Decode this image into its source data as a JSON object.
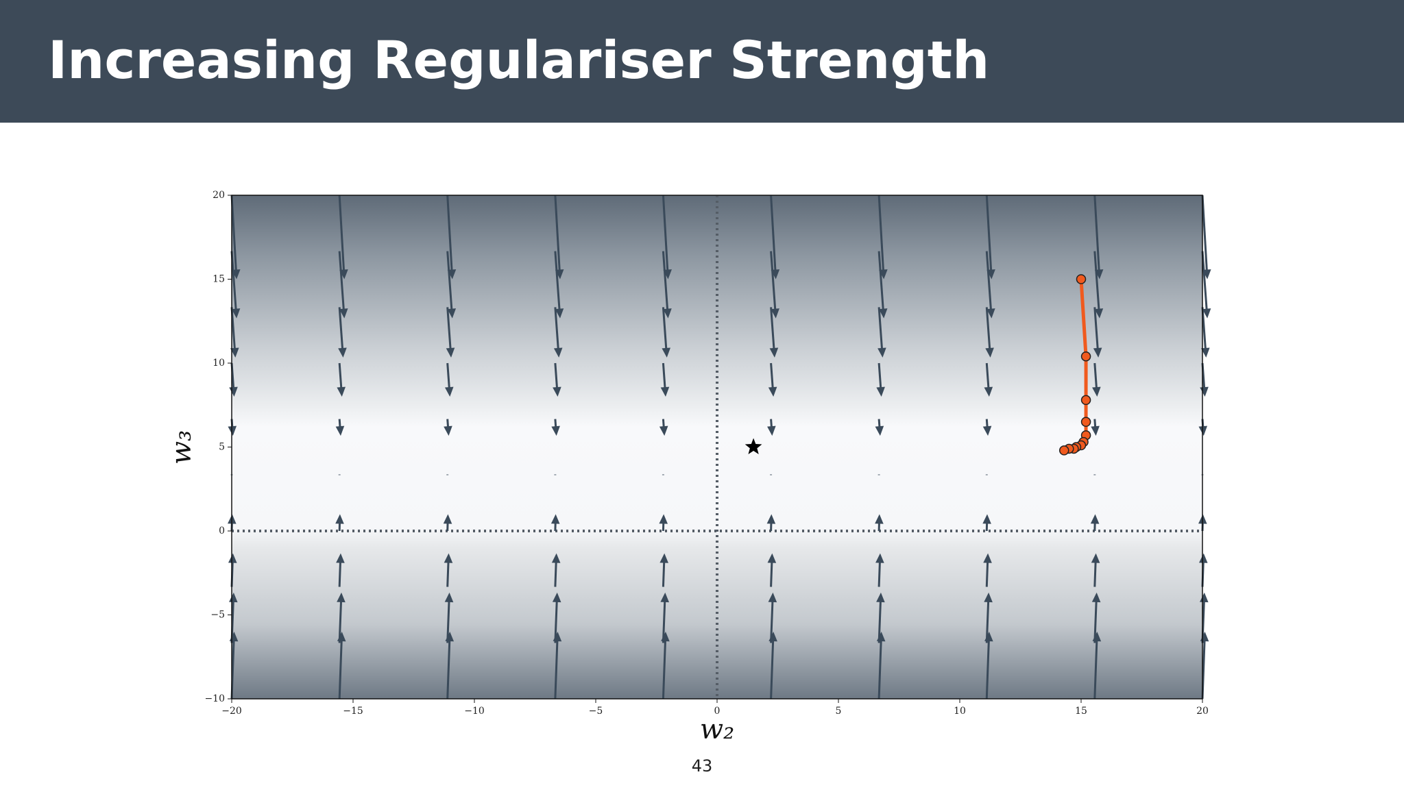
{
  "header": {
    "title": "Increasing Regulariser Strength"
  },
  "page_number": "43",
  "chart_data": {
    "type": "quiver",
    "xlabel": "w₂",
    "ylabel": "w₃",
    "xlim": [
      -20,
      20
    ],
    "ylim": [
      -10,
      20
    ],
    "xticks": [
      {
        "value": -20,
        "label": "−20"
      },
      {
        "value": -15,
        "label": "−15"
      },
      {
        "value": -10,
        "label": "−10"
      },
      {
        "value": -5,
        "label": "−5"
      },
      0,
      5,
      10,
      15,
      20
    ],
    "yticks": [
      {
        "value": -10,
        "label": "−10"
      },
      {
        "value": -5,
        "label": "−5"
      },
      0,
      5,
      10,
      15,
      20
    ],
    "quiver": {
      "color": "#3a4a5a",
      "x": [
        -20,
        -15.56,
        -11.11,
        -6.67,
        -2.22,
        2.22,
        6.67,
        11.11,
        15.56,
        20
      ],
      "y": [
        -10,
        -6.67,
        -3.33,
        0,
        3.33,
        6.67,
        10,
        13.33,
        16.67,
        20
      ],
      "u": [
        0.1,
        0.08,
        0.05,
        0.02,
        0,
        0.05,
        0.1,
        0.15,
        0.2,
        0.2
      ],
      "v": [
        4.0,
        3.0,
        2.0,
        1.0,
        0.05,
        -1.0,
        -2.0,
        -3.0,
        -4.0,
        -5.0
      ]
    },
    "series": [
      {
        "name": "trajectory",
        "color": "#f05a1e",
        "x": [
          15.0,
          15.2,
          15.2,
          15.2,
          15.2,
          15.1,
          15.0,
          14.8,
          14.7,
          14.5,
          14.3
        ],
        "values": [
          15.0,
          10.4,
          7.8,
          6.5,
          5.7,
          5.3,
          5.1,
          5.0,
          4.9,
          4.9,
          4.8
        ]
      }
    ],
    "optimum": {
      "x": 1.5,
      "y": 5.0,
      "color": "#000000"
    }
  }
}
